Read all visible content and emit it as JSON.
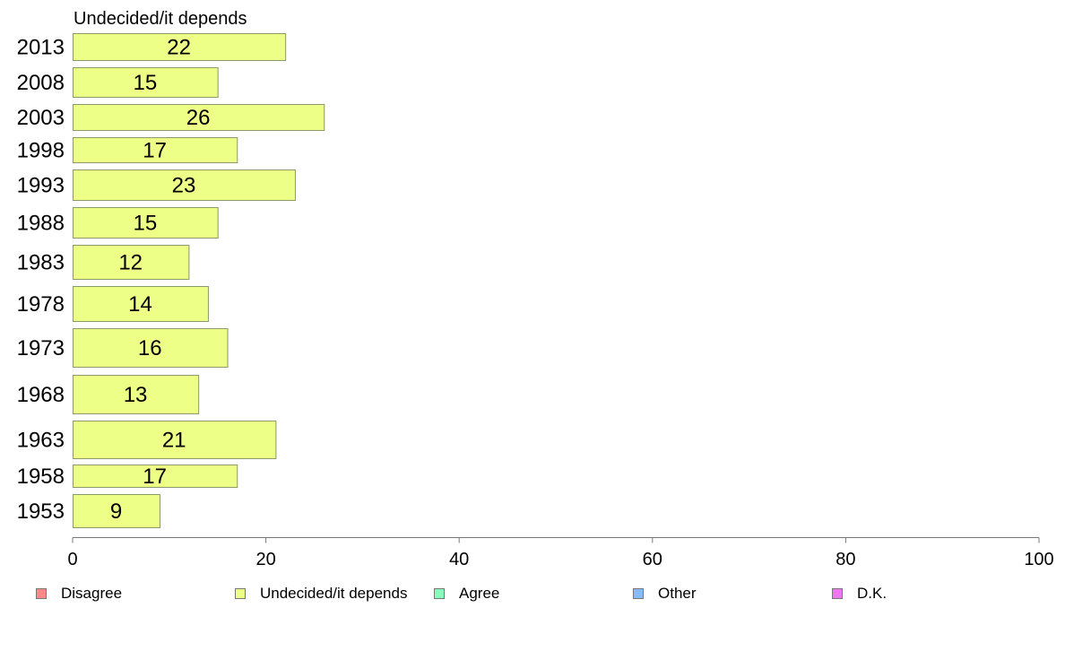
{
  "chart_data": {
    "type": "bar",
    "orientation": "horizontal",
    "title": "Undecided/it depends",
    "categories": [
      "2013",
      "2008",
      "2003",
      "1998",
      "1993",
      "1988",
      "1983",
      "1978",
      "1973",
      "1968",
      "1963",
      "1958",
      "1953"
    ],
    "series": [
      {
        "name": "Undecided/it depends",
        "values": [
          22,
          15,
          26,
          17,
          23,
          15,
          12,
          14,
          16,
          13,
          21,
          17,
          9
        ],
        "color": "#eeff88"
      }
    ],
    "xlim": [
      0,
      100
    ],
    "xticks": [
      "0",
      "20",
      "40",
      "60",
      "80",
      "100"
    ],
    "grid": false,
    "legend_position": "bottom"
  },
  "legend": [
    {
      "label": "Disagree",
      "color": "#ff8888"
    },
    {
      "label": "Undecided/it depends",
      "color": "#eeff88"
    },
    {
      "label": "Agree",
      "color": "#88ffbb"
    },
    {
      "label": "Other",
      "color": "#88bbff"
    },
    {
      "label": "D.K.",
      "color": "#ee77ee"
    }
  ]
}
